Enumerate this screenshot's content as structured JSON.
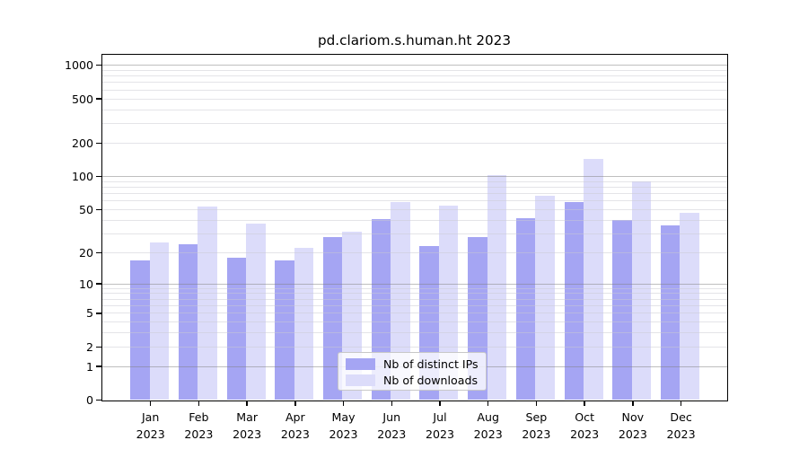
{
  "header": {
    "title": "pd.clariom.s.human.ht 2023"
  },
  "chart_data": {
    "type": "bar",
    "title": "pd.clariom.s.human.ht 2023",
    "categories": [
      "Jan",
      "Feb",
      "Mar",
      "Apr",
      "May",
      "Jun",
      "Jul",
      "Aug",
      "Sep",
      "Oct",
      "Nov",
      "Dec"
    ],
    "category_year": "2023",
    "series": [
      {
        "name": "Nb of distinct IPs",
        "color": "#a5a5f3",
        "values": [
          17,
          24,
          18,
          17,
          28,
          41,
          23,
          28,
          42,
          58,
          40,
          36
        ]
      },
      {
        "name": "Nb of downloads",
        "color": "#dcdcfa",
        "values": [
          25,
          53,
          37,
          22,
          31,
          58,
          54,
          102,
          67,
          143,
          90,
          47
        ]
      }
    ],
    "xlabel": "",
    "ylabel": "",
    "yscale": "log1p",
    "yticks": [
      1000,
      500,
      200,
      100,
      50,
      20,
      10,
      5,
      2,
      1,
      0
    ],
    "ylim": [
      0,
      1240
    ],
    "grid": "on",
    "grid_minor_ticks": [
      2,
      3,
      4,
      5,
      6,
      7,
      8,
      9,
      20,
      30,
      40,
      50,
      60,
      70,
      80,
      90,
      200,
      300,
      400,
      500,
      600,
      700,
      800,
      900
    ],
    "grid_major_ticks": [
      1,
      10,
      100,
      1000
    ],
    "legend_position": "inside-bottom-center"
  },
  "colors": {
    "bar_distinct_ips": "#a5a5f3",
    "bar_downloads": "#dcdcfa",
    "grid_major": "#b5b5b5",
    "grid_minor": "#e9e9ef",
    "spine": "#000000",
    "background": "#ffffff"
  }
}
